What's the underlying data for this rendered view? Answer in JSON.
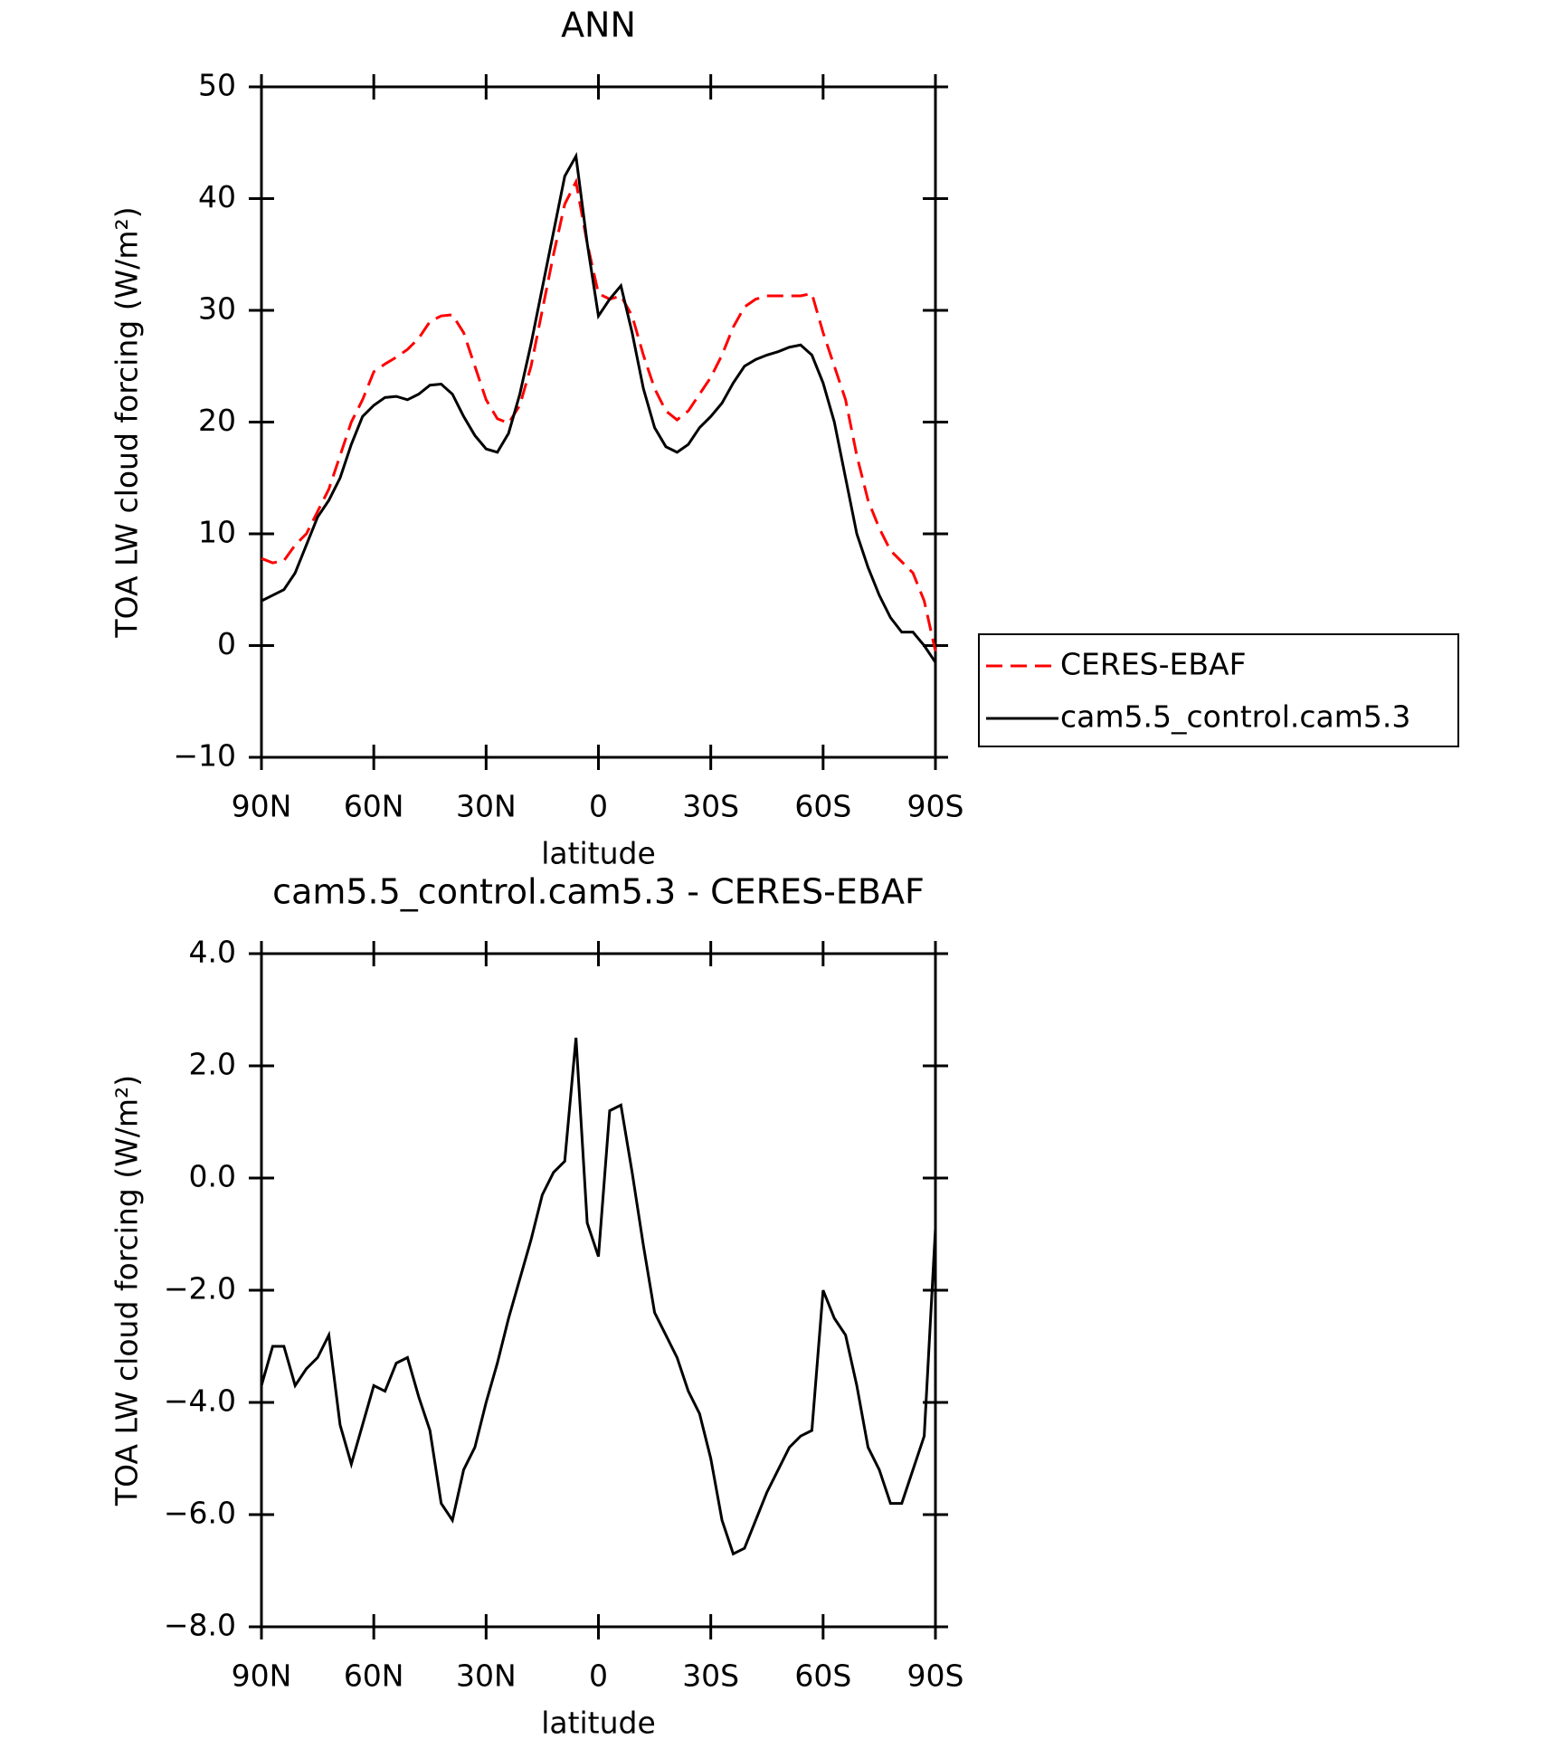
{
  "chart_data": [
    {
      "type": "line",
      "title": "ANN",
      "xlabel": "latitude",
      "ylabel": "TOA LW cloud forcing (W/m²)",
      "x": [
        90,
        87,
        84,
        81,
        78,
        75,
        72,
        69,
        66,
        63,
        60,
        57,
        54,
        51,
        48,
        45,
        42,
        39,
        36,
        33,
        30,
        27,
        24,
        21,
        18,
        15,
        12,
        9,
        6,
        3,
        0,
        -3,
        -6,
        -9,
        -12,
        -15,
        -18,
        -21,
        -24,
        -27,
        -30,
        -33,
        -36,
        -39,
        -42,
        -45,
        -48,
        -51,
        -54,
        -57,
        -60,
        -63,
        -66,
        -69,
        -72,
        -75,
        -78,
        -81,
        -84,
        -87,
        -90
      ],
      "xlim": [
        90,
        -90
      ],
      "xticks": [
        {
          "value": 90,
          "label": "90N"
        },
        {
          "value": 60,
          "label": "60N"
        },
        {
          "value": 30,
          "label": "30N"
        },
        0,
        {
          "value": -30,
          "label": "30S"
        },
        {
          "value": -60,
          "label": "60S"
        },
        {
          "value": -90,
          "label": "90S"
        }
      ],
      "ylim": [
        -10,
        50
      ],
      "yticks": [
        {
          "value": -10,
          "label": "−10"
        },
        0,
        10,
        20,
        30,
        40,
        50
      ],
      "legend": "outside-right",
      "series": [
        {
          "name": "CERES-EBAF",
          "color": "#ff0000",
          "dashed": true,
          "values": [
            7.8,
            7.4,
            7.6,
            9,
            10,
            12,
            14,
            17,
            20,
            22,
            24.5,
            25.2,
            25.8,
            26.5,
            27.5,
            29,
            29.5,
            29.6,
            28,
            25,
            22,
            20.3,
            19.9,
            21.5,
            25,
            30,
            35,
            39.5,
            41.5,
            36,
            31.5,
            31,
            31.3,
            29.5,
            26,
            23,
            21,
            20.2,
            21,
            22.5,
            24,
            26,
            28.5,
            30.3,
            31,
            31.3,
            31.3,
            31.3,
            31.3,
            31.5,
            28,
            25,
            22,
            17,
            13,
            10.5,
            8.5,
            7.5,
            6.5,
            4,
            -0.5
          ]
        },
        {
          "name": "cam5.5_control.cam5.3",
          "color": "#000000",
          "dashed": false,
          "values": [
            4,
            4.5,
            5,
            6.5,
            9,
            11.5,
            13,
            15,
            18,
            20.5,
            21.5,
            22.2,
            22.3,
            22,
            22.5,
            23.3,
            23.4,
            22.5,
            20.5,
            18.8,
            17.6,
            17.3,
            19,
            22.5,
            27,
            32,
            37,
            42,
            43.8,
            36,
            29.5,
            31,
            32.2,
            28,
            23,
            19.5,
            17.8,
            17.3,
            18,
            19.5,
            20.5,
            21.7,
            23.5,
            25,
            25.6,
            26,
            26.3,
            26.7,
            26.9,
            26,
            23.5,
            20,
            15,
            10,
            7,
            4.5,
            2.5,
            1.2,
            1.2,
            0,
            -1.5
          ]
        }
      ]
    },
    {
      "type": "line",
      "title": "cam5.5_control.cam5.3 - CERES-EBAF",
      "xlabel": "latitude",
      "ylabel": "TOA LW cloud forcing (W/m²)",
      "x": [
        90,
        87,
        84,
        81,
        78,
        75,
        72,
        69,
        66,
        63,
        60,
        57,
        54,
        51,
        48,
        45,
        42,
        39,
        36,
        33,
        30,
        27,
        24,
        21,
        18,
        15,
        12,
        9,
        6,
        3,
        0,
        -3,
        -6,
        -9,
        -12,
        -15,
        -18,
        -21,
        -24,
        -27,
        -30,
        -33,
        -36,
        -39,
        -42,
        -45,
        -48,
        -51,
        -54,
        -57,
        -60,
        -63,
        -66,
        -69,
        -72,
        -75,
        -78,
        -81,
        -84,
        -87,
        -90
      ],
      "xlim": [
        90,
        -90
      ],
      "xticks": [
        {
          "value": 90,
          "label": "90N"
        },
        {
          "value": 60,
          "label": "60N"
        },
        {
          "value": 30,
          "label": "30N"
        },
        0,
        {
          "value": -30,
          "label": "30S"
        },
        {
          "value": -60,
          "label": "60S"
        },
        {
          "value": -90,
          "label": "90S"
        }
      ],
      "ylim": [
        -8,
        4
      ],
      "yticks": [
        {
          "value": -8,
          "label": "−8.0"
        },
        {
          "value": -6,
          "label": "−6.0"
        },
        {
          "value": -4,
          "label": "−4.0"
        },
        {
          "value": -2,
          "label": "−2.0"
        },
        {
          "value": 0,
          "label": "0.0"
        },
        {
          "value": 2,
          "label": "2.0"
        },
        {
          "value": 4,
          "label": "4.0"
        }
      ],
      "series": [
        {
          "name": "cam5.5_control.cam5.3 - CERES-EBAF",
          "color": "#000000",
          "dashed": false,
          "values": [
            -3.7,
            -3,
            -3,
            -3.7,
            -3.4,
            -3.2,
            -2.8,
            -4.4,
            -5.1,
            -4.4,
            -3.7,
            -3.8,
            -3.3,
            -3.2,
            -3.9,
            -4.5,
            -5.8,
            -6.1,
            -5.2,
            -4.8,
            -4,
            -3.3,
            -2.5,
            -1.8,
            -1.1,
            -0.3,
            0.1,
            0.3,
            2.5,
            -0.8,
            -1.4,
            1.2,
            1.3,
            0.1,
            -1.2,
            -2.4,
            -2.8,
            -3.2,
            -3.8,
            -4.2,
            -5,
            -6.1,
            -6.7,
            -6.6,
            -6.1,
            -5.6,
            -5.2,
            -4.8,
            -4.6,
            -4.5,
            -2,
            -2.5,
            -2.8,
            -3.7,
            -4.8,
            -5.2,
            -5.8,
            -5.8,
            -5.2,
            -4.6,
            -0.9
          ]
        }
      ]
    }
  ]
}
